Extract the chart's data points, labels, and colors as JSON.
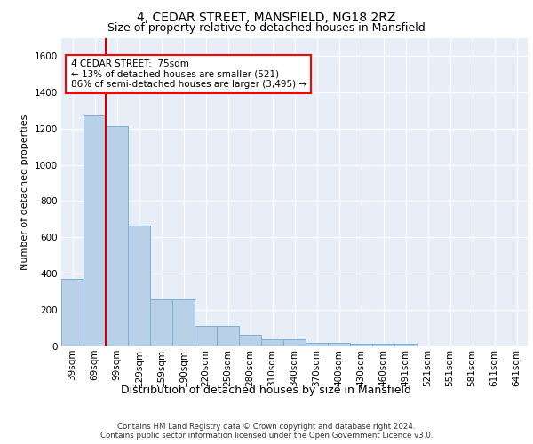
{
  "title_line1": "4, CEDAR STREET, MANSFIELD, NG18 2RZ",
  "title_line2": "Size of property relative to detached houses in Mansfield",
  "xlabel": "Distribution of detached houses by size in Mansfield",
  "ylabel": "Number of detached properties",
  "categories": [
    "39sqm",
    "69sqm",
    "99sqm",
    "129sqm",
    "159sqm",
    "190sqm",
    "220sqm",
    "250sqm",
    "280sqm",
    "310sqm",
    "340sqm",
    "370sqm",
    "400sqm",
    "430sqm",
    "460sqm",
    "491sqm",
    "521sqm",
    "551sqm",
    "581sqm",
    "611sqm",
    "641sqm"
  ],
  "values": [
    370,
    1270,
    1215,
    665,
    260,
    260,
    112,
    112,
    65,
    40,
    40,
    20,
    20,
    15,
    15,
    15,
    0,
    0,
    0,
    0,
    0
  ],
  "bar_color": "#b8d0e8",
  "bar_edge_color": "#7aafd4",
  "property_line_x": 1.5,
  "annotation_text": "4 CEDAR STREET:  75sqm\n← 13% of detached houses are smaller (521)\n86% of semi-detached houses are larger (3,495) →",
  "red_line_color": "#cc0000",
  "ylim": [
    0,
    1700
  ],
  "yticks": [
    0,
    200,
    400,
    600,
    800,
    1000,
    1200,
    1400,
    1600
  ],
  "footer_line1": "Contains HM Land Registry data © Crown copyright and database right 2024.",
  "footer_line2": "Contains public sector information licensed under the Open Government Licence v3.0.",
  "plot_bg_color": "#e8eef8",
  "grid_color": "#ffffff",
  "title1_fontsize": 10,
  "title2_fontsize": 9,
  "ylabel_fontsize": 8,
  "xlabel_fontsize": 9,
  "tick_fontsize": 7.5,
  "annot_fontsize": 7.5
}
